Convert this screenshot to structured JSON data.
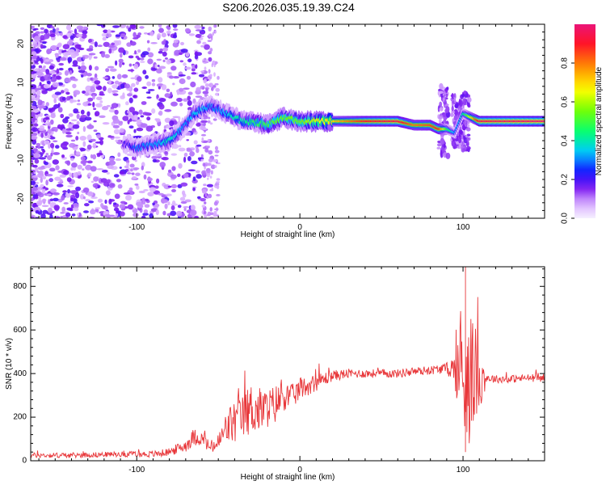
{
  "title": "S206.2026.035.19.39.C24",
  "chart_data": [
    {
      "type": "heatmap",
      "xlabel": "Height of straight line (km)",
      "ylabel": "Frequency (Hz)",
      "xlim": [
        -165,
        150
      ],
      "ylim": [
        -25,
        25
      ],
      "xticks": [
        -100,
        0,
        100
      ],
      "yticks": [
        -20,
        -10,
        0,
        10,
        20
      ],
      "colorbar": {
        "label": "Normalized spectral amplitude",
        "range": [
          0,
          1
        ],
        "ticks": [
          "0.0",
          "0.2",
          "0.4",
          "0.6",
          "0.8"
        ]
      },
      "ridge": {
        "x": [
          -105,
          -100,
          -90,
          -80,
          -70,
          -65,
          -60,
          -55,
          -50,
          -45,
          -40,
          -35,
          -30,
          -20,
          -10,
          0,
          20,
          40,
          60,
          70,
          80,
          85,
          90,
          95,
          100,
          110,
          150
        ],
        "y": [
          -6,
          -7,
          -6,
          -5,
          -1,
          2,
          3,
          4,
          3,
          2,
          1,
          0,
          0,
          -1,
          1,
          0,
          0,
          0,
          0,
          -1,
          -1,
          -2,
          -2,
          -3,
          2,
          0,
          0
        ],
        "amplitude": [
          0.2,
          0.3,
          0.3,
          0.4,
          0.3,
          0.35,
          0.35,
          0.3,
          0.3,
          0.35,
          0.4,
          0.4,
          0.45,
          0.5,
          0.55,
          0.55,
          0.7,
          0.9,
          0.95,
          0.8,
          0.85,
          0.9,
          0.5,
          0.3,
          0.4,
          0.95,
          1.0
        ]
      }
    },
    {
      "type": "line",
      "xlabel": "Height of straight line (km)",
      "ylabel": "SNR (10 * v/v)",
      "xlim": [
        -165,
        150
      ],
      "ylim": [
        0,
        890
      ],
      "xticks": [
        -100,
        0,
        100
      ],
      "yticks": [
        0,
        200,
        400,
        600,
        800
      ],
      "series": [
        {
          "name": "SNR",
          "color": "#e8373a",
          "x": [
            -165,
            -140,
            -110,
            -90,
            -80,
            -70,
            -65,
            -60,
            -55,
            -50,
            -45,
            -40,
            -35,
            -30,
            -25,
            -20,
            -15,
            -10,
            -5,
            0,
            10,
            20,
            30,
            40,
            50,
            60,
            70,
            80,
            85,
            90,
            95,
            100,
            102,
            105,
            110,
            115,
            120,
            130,
            140,
            150
          ],
          "y": [
            25,
            25,
            30,
            30,
            40,
            70,
            110,
            100,
            60,
            80,
            150,
            180,
            200,
            240,
            230,
            240,
            260,
            300,
            290,
            330,
            360,
            390,
            400,
            400,
            400,
            400,
            410,
            415,
            420,
            425,
            420,
            380,
            450,
            400,
            380,
            380,
            375,
            375,
            380,
            380
          ],
          "noise": [
            12,
            12,
            12,
            15,
            18,
            30,
            40,
            30,
            30,
            45,
            80,
            110,
            100,
            120,
            110,
            90,
            90,
            70,
            60,
            50,
            40,
            25,
            22,
            20,
            20,
            20,
            20,
            20,
            22,
            25,
            80,
            350,
            420,
            300,
            150,
            20,
            18,
            18,
            18,
            18
          ]
        }
      ]
    }
  ]
}
